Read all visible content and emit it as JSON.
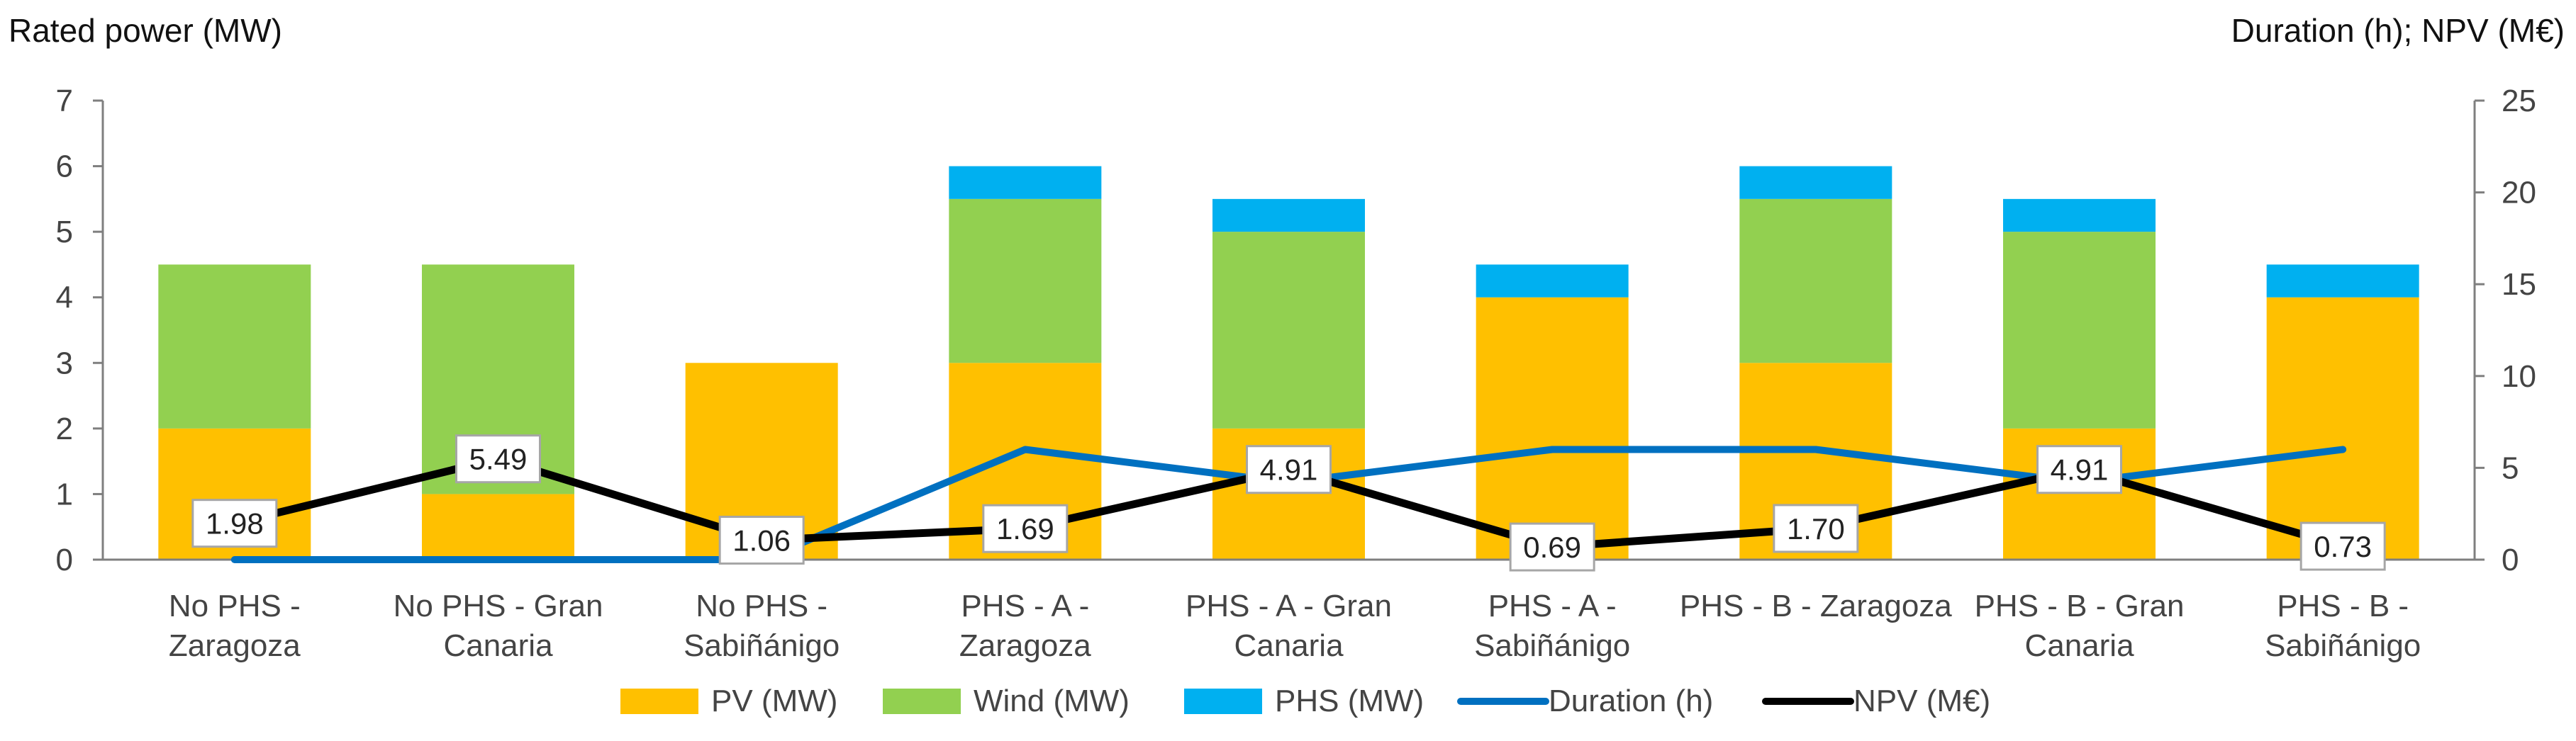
{
  "chart_data": {
    "type": "bar",
    "stacked": true,
    "ylabel_left": "Rated power (MW)",
    "ylabel_right": "Duration (h);  NPV (M€)",
    "ylim_left": [
      0,
      7
    ],
    "yticks_left": [
      "0",
      "1",
      "2",
      "3",
      "4",
      "5",
      "6",
      "7"
    ],
    "ylim_right": [
      0,
      25
    ],
    "yticks_right": [
      "0",
      "5",
      "10",
      "15",
      "20",
      "25"
    ],
    "categories": [
      [
        "No PHS -",
        "Zaragoza"
      ],
      [
        "No PHS - Gran",
        "Canaria"
      ],
      [
        "No PHS -",
        "Sabiñánigo"
      ],
      [
        "PHS - A -",
        "Zaragoza"
      ],
      [
        "PHS - A - Gran",
        "Canaria"
      ],
      [
        "PHS - A -",
        "Sabiñánigo"
      ],
      [
        "PHS - B - Zaragoza"
      ],
      [
        "PHS - B - Gran",
        "Canaria"
      ],
      [
        "PHS - B -",
        "Sabiñánigo"
      ]
    ],
    "bar_series": [
      {
        "name": "PV (MW)",
        "color": "#FFC000",
        "values": [
          2,
          1,
          3,
          3,
          2,
          4,
          3,
          2,
          4
        ]
      },
      {
        "name": "Wind (MW)",
        "color": "#92D050",
        "values": [
          2.5,
          3.5,
          0,
          2.5,
          3,
          0,
          2.5,
          3,
          0
        ]
      },
      {
        "name": "PHS (MW)",
        "color": "#00B0F0",
        "values": [
          0,
          0,
          0,
          0.5,
          0.5,
          0.5,
          0.5,
          0.5,
          0.5
        ]
      }
    ],
    "line_series": [
      {
        "name": "Duration (h)",
        "color": "#0070C0",
        "axis": "right",
        "values": [
          0,
          0,
          0,
          6,
          4.2,
          6,
          6,
          4.2,
          6
        ]
      },
      {
        "name": "NPV (M€)",
        "color": "#000000",
        "axis": "right",
        "values": [
          1.98,
          5.49,
          1.06,
          1.69,
          4.91,
          0.69,
          1.7,
          4.91,
          0.73
        ],
        "labels": [
          "1.98",
          "5.49",
          "1.06",
          "1.69",
          "4.91",
          "0.69",
          "1.70",
          "4.91",
          "0.73"
        ]
      }
    ],
    "legend_position": "bottom",
    "grid": false
  }
}
